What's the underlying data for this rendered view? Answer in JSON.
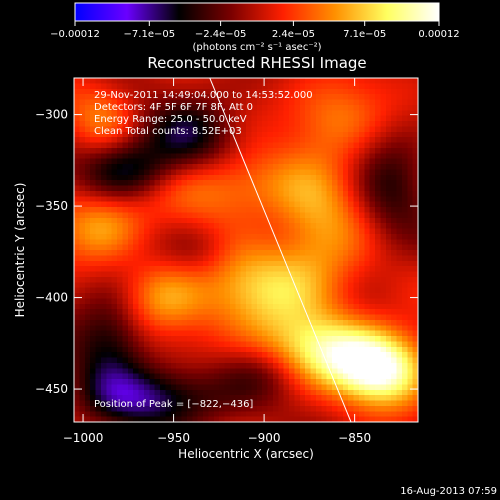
{
  "chart_data": {
    "type": "heatmap",
    "title": "Reconstructed RHESSI Image",
    "xlabel": "Heliocentric X (arcsec)",
    "ylabel": "Heliocentric Y (arcsec)",
    "xlim": [
      -1005,
      -815
    ],
    "ylim": [
      -468,
      -280
    ],
    "x_ticks": [
      -1000,
      -950,
      -900,
      -850
    ],
    "x_tick_labels": [
      "−1000",
      "−950",
      "−900",
      "−850"
    ],
    "y_ticks": [
      -300,
      -350,
      -400,
      -450
    ],
    "y_tick_labels": [
      "−300",
      "−350",
      "−400",
      "−450"
    ],
    "colorbar": {
      "range": [
        -0.00012,
        0.00012
      ],
      "ticks": [
        -0.00012,
        -7.1e-05,
        -2.4e-05,
        2.4e-05,
        7.1e-05,
        0.00012
      ],
      "tick_labels": [
        "−0.00012",
        "−7.1e−05",
        "−2.4e−05",
        "2.4e−05",
        "7.1e−05",
        "0.00012"
      ],
      "units_label": "(photons cm⁻² s⁻¹ asec⁻²)",
      "stops": [
        "#0000ff",
        "#6a00ff",
        "#000000",
        "#7a0000",
        "#ff2000",
        "#ff9000",
        "#ffff60",
        "#ffffff"
      ]
    },
    "info_lines": [
      "29-Nov-2011 14:49:04.000 to 14:53:52.000",
      "Detectors: 4F 5F 6F 7F 8F, Att 0",
      "Energy Range: 25.0 - 50.0 keV",
      "Clean     Total counts: 8.52E+03"
    ],
    "peak_label": "Position of Peak = [−822,−436]",
    "peak": [
      -822,
      -436
    ],
    "limb_line": [
      [
        -930,
        -280
      ],
      [
        -852,
        -468
      ]
    ],
    "blobs": [
      {
        "x": -905,
        "y": -395,
        "sx": 30,
        "sy": 18,
        "a": 0.45
      },
      {
        "x": -870,
        "y": -430,
        "sx": 28,
        "sy": 14,
        "a": 0.6
      },
      {
        "x": -835,
        "y": -440,
        "sx": 18,
        "sy": 14,
        "a": 0.75
      },
      {
        "x": -870,
        "y": -360,
        "sx": 18,
        "sy": 28,
        "a": 0.35
      },
      {
        "x": -920,
        "y": -340,
        "sx": 26,
        "sy": 14,
        "a": 0.35
      },
      {
        "x": -990,
        "y": -360,
        "sx": 18,
        "sy": 14,
        "a": 0.4
      },
      {
        "x": -955,
        "y": -400,
        "sx": 16,
        "sy": 14,
        "a": 0.3
      },
      {
        "x": -860,
        "y": -300,
        "sx": 20,
        "sy": 16,
        "a": 0.3
      },
      {
        "x": -990,
        "y": -300,
        "sx": 14,
        "sy": 14,
        "a": 0.25
      },
      {
        "x": -975,
        "y": -330,
        "sx": 18,
        "sy": 12,
        "a": -0.45
      },
      {
        "x": -940,
        "y": -310,
        "sx": 18,
        "sy": 14,
        "a": -0.35
      },
      {
        "x": -960,
        "y": -455,
        "sx": 28,
        "sy": 12,
        "a": -0.45
      },
      {
        "x": -985,
        "y": -425,
        "sx": 14,
        "sy": 20,
        "a": -0.35
      },
      {
        "x": -900,
        "y": -440,
        "sx": 18,
        "sy": 12,
        "a": -0.3
      },
      {
        "x": -830,
        "y": -340,
        "sx": 14,
        "sy": 24,
        "a": -0.25
      },
      {
        "x": -935,
        "y": -375,
        "sx": 14,
        "sy": 12,
        "a": -0.2
      }
    ]
  },
  "footer": {
    "timestamp": "16-Aug-2013 07:59"
  }
}
